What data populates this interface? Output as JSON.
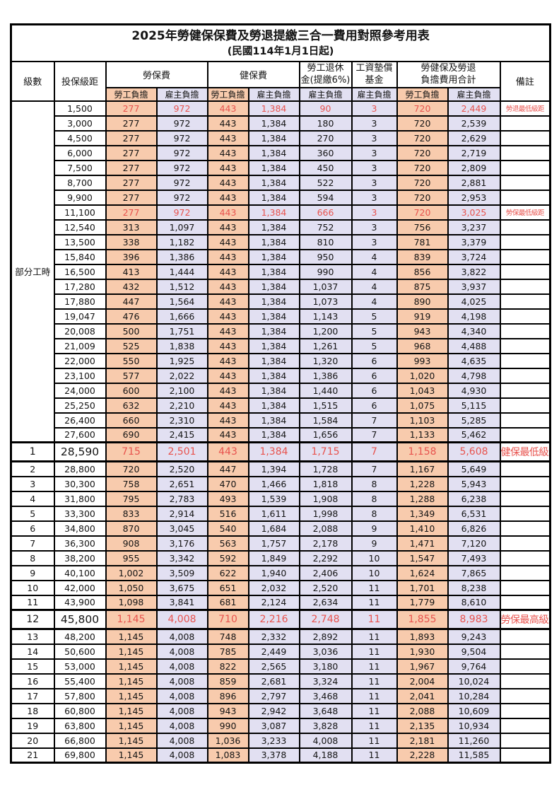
{
  "title": "2025年勞健保保費及勞退提繳三合一費用對照參考用表",
  "subtitle": "(民國114年1月1日起)",
  "colors": {
    "employee_bg": "#F8CBAD",
    "employer_bg": "#E2E0F2",
    "highlight_red": "#E8534E",
    "border": "#000000"
  },
  "header": {
    "level": "級數",
    "bracket": "投保級距",
    "labor_ins": "勞保費",
    "health_ins": "健保費",
    "pension_l1": "勞工退休",
    "pension_l2": "金(提繳6%)",
    "fund_l1": "工資墊償",
    "fund_l2": "基金",
    "total_l1": "勞健保及勞退",
    "total_l2": "負擔費用合計",
    "remark": "備註",
    "employee": "勞工負擔",
    "employer": "雇主負擔"
  },
  "body": {
    "part_time_label": "部分工時",
    "part_time_rowspan": 23,
    "rows": [
      {
        "lv": "",
        "br": "1,500",
        "li_e": "277",
        "li_r": "972",
        "hi_e": "443",
        "hi_r": "1,384",
        "pen": "90",
        "fund": "3",
        "tot_e": "720",
        "tot_r": "2,449",
        "rm": "勞退最低級距",
        "red": true,
        "big": false
      },
      {
        "lv": "",
        "br": "3,000",
        "li_e": "277",
        "li_r": "972",
        "hi_e": "443",
        "hi_r": "1,384",
        "pen": "180",
        "fund": "3",
        "tot_e": "720",
        "tot_r": "2,539",
        "rm": "",
        "red": false,
        "big": false
      },
      {
        "lv": "",
        "br": "4,500",
        "li_e": "277",
        "li_r": "972",
        "hi_e": "443",
        "hi_r": "1,384",
        "pen": "270",
        "fund": "3",
        "tot_e": "720",
        "tot_r": "2,629",
        "rm": "",
        "red": false,
        "big": false
      },
      {
        "lv": "",
        "br": "6,000",
        "li_e": "277",
        "li_r": "972",
        "hi_e": "443",
        "hi_r": "1,384",
        "pen": "360",
        "fund": "3",
        "tot_e": "720",
        "tot_r": "2,719",
        "rm": "",
        "red": false,
        "big": false
      },
      {
        "lv": "",
        "br": "7,500",
        "li_e": "277",
        "li_r": "972",
        "hi_e": "443",
        "hi_r": "1,384",
        "pen": "450",
        "fund": "3",
        "tot_e": "720",
        "tot_r": "2,809",
        "rm": "",
        "red": false,
        "big": false
      },
      {
        "lv": "",
        "br": "8,700",
        "li_e": "277",
        "li_r": "972",
        "hi_e": "443",
        "hi_r": "1,384",
        "pen": "522",
        "fund": "3",
        "tot_e": "720",
        "tot_r": "2,881",
        "rm": "",
        "red": false,
        "big": false
      },
      {
        "lv": "",
        "br": "9,900",
        "li_e": "277",
        "li_r": "972",
        "hi_e": "443",
        "hi_r": "1,384",
        "pen": "594",
        "fund": "3",
        "tot_e": "720",
        "tot_r": "2,953",
        "rm": "",
        "red": false,
        "big": false
      },
      {
        "lv": "",
        "br": "11,100",
        "li_e": "277",
        "li_r": "972",
        "hi_e": "443",
        "hi_r": "1,384",
        "pen": "666",
        "fund": "3",
        "tot_e": "720",
        "tot_r": "3,025",
        "rm": "勞保最低級距",
        "red": true,
        "big": false
      },
      {
        "lv": "",
        "br": "12,540",
        "li_e": "313",
        "li_r": "1,097",
        "hi_e": "443",
        "hi_r": "1,384",
        "pen": "752",
        "fund": "3",
        "tot_e": "756",
        "tot_r": "3,237",
        "rm": "",
        "red": false,
        "big": false
      },
      {
        "lv": "",
        "br": "13,500",
        "li_e": "338",
        "li_r": "1,182",
        "hi_e": "443",
        "hi_r": "1,384",
        "pen": "810",
        "fund": "3",
        "tot_e": "781",
        "tot_r": "3,379",
        "rm": "",
        "red": false,
        "big": false
      },
      {
        "lv": "",
        "br": "15,840",
        "li_e": "396",
        "li_r": "1,386",
        "hi_e": "443",
        "hi_r": "1,384",
        "pen": "950",
        "fund": "4",
        "tot_e": "839",
        "tot_r": "3,724",
        "rm": "",
        "red": false,
        "big": false
      },
      {
        "lv": "",
        "br": "16,500",
        "li_e": "413",
        "li_r": "1,444",
        "hi_e": "443",
        "hi_r": "1,384",
        "pen": "990",
        "fund": "4",
        "tot_e": "856",
        "tot_r": "3,822",
        "rm": "",
        "red": false,
        "big": false
      },
      {
        "lv": "",
        "br": "17,280",
        "li_e": "432",
        "li_r": "1,512",
        "hi_e": "443",
        "hi_r": "1,384",
        "pen": "1,037",
        "fund": "4",
        "tot_e": "875",
        "tot_r": "3,937",
        "rm": "",
        "red": false,
        "big": false
      },
      {
        "lv": "",
        "br": "17,880",
        "li_e": "447",
        "li_r": "1,564",
        "hi_e": "443",
        "hi_r": "1,384",
        "pen": "1,073",
        "fund": "4",
        "tot_e": "890",
        "tot_r": "4,025",
        "rm": "",
        "red": false,
        "big": false
      },
      {
        "lv": "",
        "br": "19,047",
        "li_e": "476",
        "li_r": "1,666",
        "hi_e": "443",
        "hi_r": "1,384",
        "pen": "1,143",
        "fund": "5",
        "tot_e": "919",
        "tot_r": "4,198",
        "rm": "",
        "red": false,
        "big": false
      },
      {
        "lv": "",
        "br": "20,008",
        "li_e": "500",
        "li_r": "1,751",
        "hi_e": "443",
        "hi_r": "1,384",
        "pen": "1,200",
        "fund": "5",
        "tot_e": "943",
        "tot_r": "4,340",
        "rm": "",
        "red": false,
        "big": false
      },
      {
        "lv": "",
        "br": "21,009",
        "li_e": "525",
        "li_r": "1,838",
        "hi_e": "443",
        "hi_r": "1,384",
        "pen": "1,261",
        "fund": "5",
        "tot_e": "968",
        "tot_r": "4,488",
        "rm": "",
        "red": false,
        "big": false
      },
      {
        "lv": "",
        "br": "22,000",
        "li_e": "550",
        "li_r": "1,925",
        "hi_e": "443",
        "hi_r": "1,384",
        "pen": "1,320",
        "fund": "6",
        "tot_e": "993",
        "tot_r": "4,635",
        "rm": "",
        "red": false,
        "big": false
      },
      {
        "lv": "",
        "br": "23,100",
        "li_e": "577",
        "li_r": "2,022",
        "hi_e": "443",
        "hi_r": "1,384",
        "pen": "1,386",
        "fund": "6",
        "tot_e": "1,020",
        "tot_r": "4,798",
        "rm": "",
        "red": false,
        "big": false
      },
      {
        "lv": "",
        "br": "24,000",
        "li_e": "600",
        "li_r": "2,100",
        "hi_e": "443",
        "hi_r": "1,384",
        "pen": "1,440",
        "fund": "6",
        "tot_e": "1,043",
        "tot_r": "4,930",
        "rm": "",
        "red": false,
        "big": false
      },
      {
        "lv": "",
        "br": "25,250",
        "li_e": "632",
        "li_r": "2,210",
        "hi_e": "443",
        "hi_r": "1,384",
        "pen": "1,515",
        "fund": "6",
        "tot_e": "1,075",
        "tot_r": "5,115",
        "rm": "",
        "red": false,
        "big": false
      },
      {
        "lv": "",
        "br": "26,400",
        "li_e": "660",
        "li_r": "2,310",
        "hi_e": "443",
        "hi_r": "1,384",
        "pen": "1,584",
        "fund": "7",
        "tot_e": "1,103",
        "tot_r": "5,285",
        "rm": "",
        "red": false,
        "big": false
      },
      {
        "lv": "",
        "br": "27,600",
        "li_e": "690",
        "li_r": "2,415",
        "hi_e": "443",
        "hi_r": "1,384",
        "pen": "1,656",
        "fund": "7",
        "tot_e": "1,133",
        "tot_r": "5,462",
        "rm": "",
        "red": false,
        "big": false
      },
      {
        "lv": "1",
        "br": "28,590",
        "li_e": "715",
        "li_r": "2,501",
        "hi_e": "443",
        "hi_r": "1,384",
        "pen": "1,715",
        "fund": "7",
        "tot_e": "1,158",
        "tot_r": "5,608",
        "rm": "健保最低級距",
        "red": true,
        "big": true
      },
      {
        "lv": "2",
        "br": "28,800",
        "li_e": "720",
        "li_r": "2,520",
        "hi_e": "447",
        "hi_r": "1,394",
        "pen": "1,728",
        "fund": "7",
        "tot_e": "1,167",
        "tot_r": "5,649",
        "rm": "",
        "red": false,
        "big": false
      },
      {
        "lv": "3",
        "br": "30,300",
        "li_e": "758",
        "li_r": "2,651",
        "hi_e": "470",
        "hi_r": "1,466",
        "pen": "1,818",
        "fund": "8",
        "tot_e": "1,228",
        "tot_r": "5,943",
        "rm": "",
        "red": false,
        "big": false
      },
      {
        "lv": "4",
        "br": "31,800",
        "li_e": "795",
        "li_r": "2,783",
        "hi_e": "493",
        "hi_r": "1,539",
        "pen": "1,908",
        "fund": "8",
        "tot_e": "1,288",
        "tot_r": "6,238",
        "rm": "",
        "red": false,
        "big": false
      },
      {
        "lv": "5",
        "br": "33,300",
        "li_e": "833",
        "li_r": "2,914",
        "hi_e": "516",
        "hi_r": "1,611",
        "pen": "1,998",
        "fund": "8",
        "tot_e": "1,349",
        "tot_r": "6,531",
        "rm": "",
        "red": false,
        "big": false
      },
      {
        "lv": "6",
        "br": "34,800",
        "li_e": "870",
        "li_r": "3,045",
        "hi_e": "540",
        "hi_r": "1,684",
        "pen": "2,088",
        "fund": "9",
        "tot_e": "1,410",
        "tot_r": "6,826",
        "rm": "",
        "red": false,
        "big": false
      },
      {
        "lv": "7",
        "br": "36,300",
        "li_e": "908",
        "li_r": "3,176",
        "hi_e": "563",
        "hi_r": "1,757",
        "pen": "2,178",
        "fund": "9",
        "tot_e": "1,471",
        "tot_r": "7,120",
        "rm": "",
        "red": false,
        "big": false
      },
      {
        "lv": "8",
        "br": "38,200",
        "li_e": "955",
        "li_r": "3,342",
        "hi_e": "592",
        "hi_r": "1,849",
        "pen": "2,292",
        "fund": "10",
        "tot_e": "1,547",
        "tot_r": "7,493",
        "rm": "",
        "red": false,
        "big": false
      },
      {
        "lv": "9",
        "br": "40,100",
        "li_e": "1,002",
        "li_r": "3,509",
        "hi_e": "622",
        "hi_r": "1,940",
        "pen": "2,406",
        "fund": "10",
        "tot_e": "1,624",
        "tot_r": "7,865",
        "rm": "",
        "red": false,
        "big": false
      },
      {
        "lv": "10",
        "br": "42,000",
        "li_e": "1,050",
        "li_r": "3,675",
        "hi_e": "651",
        "hi_r": "2,032",
        "pen": "2,520",
        "fund": "11",
        "tot_e": "1,701",
        "tot_r": "8,238",
        "rm": "",
        "red": false,
        "big": false
      },
      {
        "lv": "11",
        "br": "43,900",
        "li_e": "1,098",
        "li_r": "3,841",
        "hi_e": "681",
        "hi_r": "2,124",
        "pen": "2,634",
        "fund": "11",
        "tot_e": "1,779",
        "tot_r": "8,610",
        "rm": "",
        "red": false,
        "big": false
      },
      {
        "lv": "12",
        "br": "45,800",
        "li_e": "1,145",
        "li_r": "4,008",
        "hi_e": "710",
        "hi_r": "2,216",
        "pen": "2,748",
        "fund": "11",
        "tot_e": "1,855",
        "tot_r": "8,983",
        "rm": "勞保最高級距",
        "red": true,
        "big": true
      },
      {
        "lv": "13",
        "br": "48,200",
        "li_e": "1,145",
        "li_r": "4,008",
        "hi_e": "748",
        "hi_r": "2,332",
        "pen": "2,892",
        "fund": "11",
        "tot_e": "1,893",
        "tot_r": "9,243",
        "rm": "",
        "red": false,
        "big": false
      },
      {
        "lv": "14",
        "br": "50,600",
        "li_e": "1,145",
        "li_r": "4,008",
        "hi_e": "785",
        "hi_r": "2,449",
        "pen": "3,036",
        "fund": "11",
        "tot_e": "1,930",
        "tot_r": "9,504",
        "rm": "",
        "red": false,
        "big": false
      },
      {
        "lv": "15",
        "br": "53,000",
        "li_e": "1,145",
        "li_r": "4,008",
        "hi_e": "822",
        "hi_r": "2,565",
        "pen": "3,180",
        "fund": "11",
        "tot_e": "1,967",
        "tot_r": "9,764",
        "rm": "",
        "red": false,
        "big": false
      },
      {
        "lv": "16",
        "br": "55,400",
        "li_e": "1,145",
        "li_r": "4,008",
        "hi_e": "859",
        "hi_r": "2,681",
        "pen": "3,324",
        "fund": "11",
        "tot_e": "2,004",
        "tot_r": "10,024",
        "rm": "",
        "red": false,
        "big": false
      },
      {
        "lv": "17",
        "br": "57,800",
        "li_e": "1,145",
        "li_r": "4,008",
        "hi_e": "896",
        "hi_r": "2,797",
        "pen": "3,468",
        "fund": "11",
        "tot_e": "2,041",
        "tot_r": "10,284",
        "rm": "",
        "red": false,
        "big": false
      },
      {
        "lv": "18",
        "br": "60,800",
        "li_e": "1,145",
        "li_r": "4,008",
        "hi_e": "943",
        "hi_r": "2,942",
        "pen": "3,648",
        "fund": "11",
        "tot_e": "2,088",
        "tot_r": "10,609",
        "rm": "",
        "red": false,
        "big": false
      },
      {
        "lv": "19",
        "br": "63,800",
        "li_e": "1,145",
        "li_r": "4,008",
        "hi_e": "990",
        "hi_r": "3,087",
        "pen": "3,828",
        "fund": "11",
        "tot_e": "2,135",
        "tot_r": "10,934",
        "rm": "",
        "red": false,
        "big": false
      },
      {
        "lv": "20",
        "br": "66,800",
        "li_e": "1,145",
        "li_r": "4,008",
        "hi_e": "1,036",
        "hi_r": "3,233",
        "pen": "4,008",
        "fund": "11",
        "tot_e": "2,181",
        "tot_r": "11,260",
        "rm": "",
        "red": false,
        "big": false
      },
      {
        "lv": "21",
        "br": "69,800",
        "li_e": "1,145",
        "li_r": "4,008",
        "hi_e": "1,083",
        "hi_r": "3,378",
        "pen": "4,188",
        "fund": "11",
        "tot_e": "2,228",
        "tot_r": "11,585",
        "rm": "",
        "red": false,
        "big": false
      }
    ]
  }
}
